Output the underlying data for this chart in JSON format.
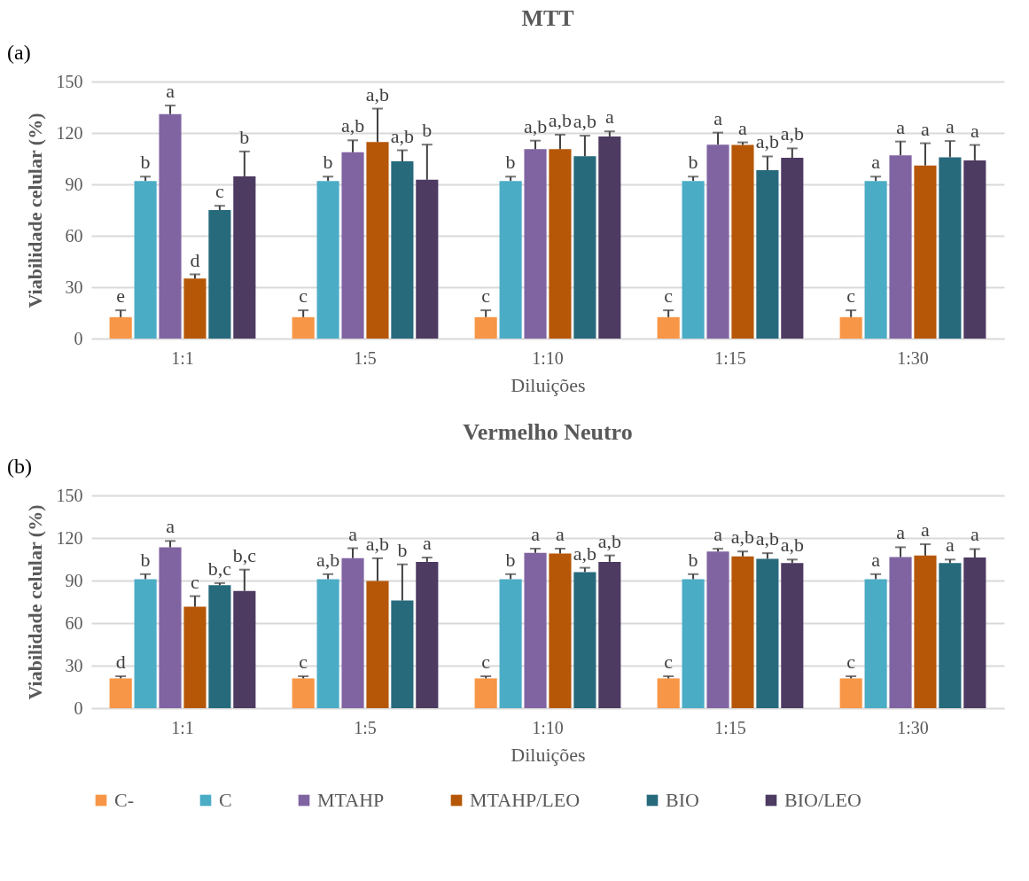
{
  "chart_data": [
    {
      "type": "bar",
      "title": "MTT",
      "xlabel": "Diluições",
      "ylabel": "Viabilidade celular (%)",
      "annotations": [
        "(a)"
      ],
      "categories": [
        "1:1",
        "1:5",
        "1:10",
        "1:15",
        "1:30"
      ],
      "ylim": [
        0,
        150
      ],
      "yticks": [
        0,
        30,
        60,
        90,
        120,
        150
      ],
      "grid": "y",
      "legend": false,
      "series": [
        {
          "color": "#f79646",
          "values": [
            12.5,
            12.5,
            12.5,
            12.5,
            12.5
          ],
          "errors": [
            4,
            4,
            4,
            4,
            4
          ],
          "value_labels": [
            "e",
            "c",
            "c",
            "c",
            "c"
          ]
        },
        {
          "color": "#4bacc6",
          "values": [
            92,
            92,
            92,
            92,
            92
          ],
          "errors": [
            2.5,
            2.5,
            2.5,
            2.5,
            2.5
          ],
          "value_labels": [
            "b",
            "b",
            "b",
            "b",
            "a"
          ]
        },
        {
          "color": "#8064a2",
          "values": [
            131,
            108.7,
            110.5,
            113.2,
            107
          ],
          "errors": [
            5,
            7,
            5,
            7,
            8
          ],
          "value_labels": [
            "a",
            "a,b",
            "a,b",
            "a",
            "a"
          ]
        },
        {
          "color": "#b65708",
          "values": [
            35,
            114.7,
            110.5,
            113,
            101
          ],
          "errors": [
            2.5,
            19.5,
            8.5,
            1.5,
            13
          ],
          "value_labels": [
            "d",
            "a,b",
            "a,b",
            "a",
            "a"
          ]
        },
        {
          "color": "#276a7c",
          "values": [
            75,
            103.4,
            106.4,
            98.3,
            105.8
          ],
          "errors": [
            2.5,
            6.5,
            12,
            8,
            9.5
          ],
          "value_labels": [
            "c",
            "a,b",
            "a,b",
            "a,b",
            "a"
          ]
        },
        {
          "color": "#4d3b62",
          "values": [
            94.7,
            92.7,
            117.9,
            105.5,
            104
          ],
          "errors": [
            14.5,
            20.5,
            3,
            5.5,
            9
          ],
          "value_labels": [
            "b",
            "b",
            "a",
            "a,b",
            "a"
          ]
        }
      ]
    },
    {
      "type": "bar",
      "title": "Vermelho Neutro",
      "xlabel": "Diluições",
      "ylabel": "Viabilidade celular (%)",
      "annotations": [
        "(b)"
      ],
      "categories": [
        "1:1",
        "1:5",
        "1:10",
        "1:15",
        "1:30"
      ],
      "ylim": [
        0,
        150
      ],
      "yticks": [
        0,
        30,
        60,
        90,
        120,
        150
      ],
      "grid": "y",
      "legend": "bottom",
      "series": [
        {
          "name": "C-",
          "color": "#f79646",
          "values": [
            21,
            21,
            21,
            21,
            21
          ],
          "errors": [
            1.5,
            1.5,
            1.5,
            1.5,
            1.5
          ],
          "value_labels": [
            "d",
            "c",
            "c",
            "c",
            "c"
          ]
        },
        {
          "name": "C",
          "color": "#4bacc6",
          "values": [
            91,
            91,
            91,
            91,
            91
          ],
          "errors": [
            3.5,
            3.5,
            3.5,
            3.5,
            3.5
          ],
          "value_labels": [
            "b",
            "a,b",
            "b",
            "b",
            "a"
          ]
        },
        {
          "name": "MTAHP",
          "color": "#8064a2",
          "values": [
            113.4,
            105.8,
            109.5,
            110.4,
            106.5
          ],
          "errors": [
            4.5,
            7,
            3,
            2,
            7
          ],
          "value_labels": [
            "a",
            "a",
            "a",
            "a",
            "a"
          ]
        },
        {
          "name": "MTAHP/LEO",
          "color": "#b65708",
          "values": [
            71.5,
            89.7,
            109,
            107,
            107.6
          ],
          "errors": [
            7.5,
            16,
            3.5,
            3.5,
            8
          ],
          "value_labels": [
            "c",
            "a,b",
            "a",
            "a,b",
            "a"
          ]
        },
        {
          "name": "BIO",
          "color": "#276a7c",
          "values": [
            86.7,
            75.9,
            96,
            105.3,
            102.3
          ],
          "errors": [
            1.5,
            25.5,
            3,
            4,
            2.5
          ],
          "value_labels": [
            "b,c",
            "b",
            "a,b",
            "a,b",
            "a"
          ]
        },
        {
          "name": "BIO/LEO",
          "color": "#4d3b62",
          "values": [
            82.7,
            103.2,
            103.2,
            102.3,
            106.2
          ],
          "errors": [
            15,
            3,
            4.5,
            2.5,
            6
          ],
          "value_labels": [
            "b,c",
            "a",
            "a,b",
            "a,b",
            "a"
          ]
        }
      ]
    }
  ]
}
